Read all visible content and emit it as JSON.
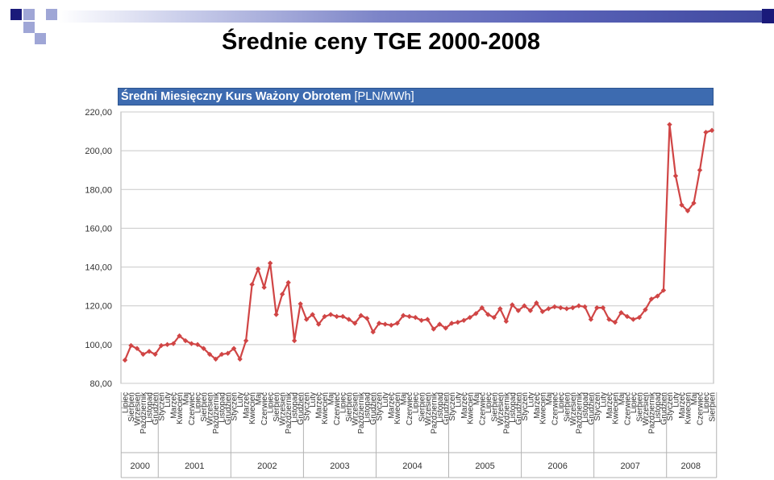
{
  "slide": {
    "title": "Średnie ceny TGE 2000-2008",
    "accent_colors": {
      "dark": "#1a1a7a",
      "light": "#9fa6d6",
      "strip": "#5a63b8"
    }
  },
  "chart_data": {
    "type": "line",
    "title_bold": "Średni Miesięczny Kurs Ważony Obrotem",
    "title_unit": "[PLN/MWh]",
    "header_color": "#3d6bb0",
    "line_color": "#d04545",
    "ylim": [
      80,
      220
    ],
    "y_ticks": [
      "80,00",
      "100,00",
      "120,00",
      "140,00",
      "160,00",
      "180,00",
      "200,00",
      "220,00"
    ],
    "grid": "horizontal",
    "legend": "none",
    "years": [
      {
        "label": "2000",
        "months": 6
      },
      {
        "label": "2001",
        "months": 12
      },
      {
        "label": "2002",
        "months": 12
      },
      {
        "label": "2003",
        "months": 12
      },
      {
        "label": "2004",
        "months": 12
      },
      {
        "label": "2005",
        "months": 12
      },
      {
        "label": "2006",
        "months": 12
      },
      {
        "label": "2007",
        "months": 12
      },
      {
        "label": "2008",
        "months": 8
      }
    ],
    "x": [
      "Lipiec",
      "Sierpień",
      "Wrzesień",
      "Październik",
      "Listopad",
      "Grudzień",
      "Styczeń",
      "Luty",
      "Marzec",
      "Kwiecień",
      "Maj",
      "Czerwiec",
      "Lipiec",
      "Sierpień",
      "Wrzesień",
      "Październik",
      "Listopad",
      "Grudzień",
      "Styczeń",
      "Luty",
      "Marzec",
      "Kwiecień",
      "Maj",
      "Czerwiec",
      "Lipiec",
      "Sierpień",
      "Wrzesień",
      "Październik",
      "Listopad",
      "Grudzień",
      "Styczeń",
      "Luty",
      "Marzec",
      "Kwiecień",
      "Maj",
      "Czerwiec",
      "Lipiec",
      "Sierpień",
      "Wrzesień",
      "Październik",
      "Listopad",
      "Grudzień",
      "Styczeń",
      "Luty",
      "Marzec",
      "Kwiecień",
      "Maj",
      "Czerwiec",
      "Lipiec",
      "Sierpień",
      "Wrzesień",
      "Październik",
      "Listopad",
      "Grudzień",
      "Styczeń",
      "Luty",
      "Marzec",
      "Kwiecień",
      "Maj",
      "Czerwiec",
      "Lipiec",
      "Sierpień",
      "Wrzesień",
      "Październik",
      "Listopad",
      "Grudzień",
      "Styczeń",
      "Luty",
      "Marzec",
      "Kwiecień",
      "Maj",
      "Czerwiec",
      "Lipiec",
      "Sierpień",
      "Wrzesień",
      "Październik",
      "Listopad",
      "Grudzień",
      "Styczeń",
      "Luty",
      "Marzec",
      "Kwiecień",
      "Maj",
      "Czerwiec",
      "Lipiec",
      "Sierpień",
      "Wrzesień",
      "Październik",
      "Listopad",
      "Grudzień",
      "Styczeń",
      "Luty",
      "Marzec",
      "Kwiecień",
      "Maj",
      "Czerwiec",
      "Lipiec",
      "Sierpień"
    ],
    "values": [
      92,
      99.5,
      98,
      95,
      96.5,
      95,
      99.5,
      100,
      100.5,
      104.5,
      102,
      100.5,
      100,
      98,
      95,
      92.5,
      95,
      95.5,
      98,
      92.5,
      102,
      131,
      139,
      129.5,
      142,
      115.5,
      126,
      132,
      102,
      121,
      113,
      115.5,
      110.5,
      114.5,
      115.5,
      114.5,
      114.5,
      113,
      111,
      115,
      113.5,
      106.5,
      111,
      110.5,
      110,
      111,
      115,
      114.5,
      114,
      112.5,
      113,
      108,
      110.5,
      108.5,
      111,
      111.5,
      112.5,
      114,
      116,
      119,
      115.5,
      114,
      118.5,
      112,
      120.5,
      117.5,
      120,
      117.5,
      121.5,
      117,
      118.5,
      119.5,
      119,
      118.5,
      119,
      120,
      119.5,
      113,
      119,
      119,
      113,
      111.5,
      116.5,
      114.5,
      113,
      114,
      118,
      123.5,
      125,
      128,
      213.5,
      187,
      172,
      169,
      173,
      190,
      209.5,
      210.5
    ]
  }
}
